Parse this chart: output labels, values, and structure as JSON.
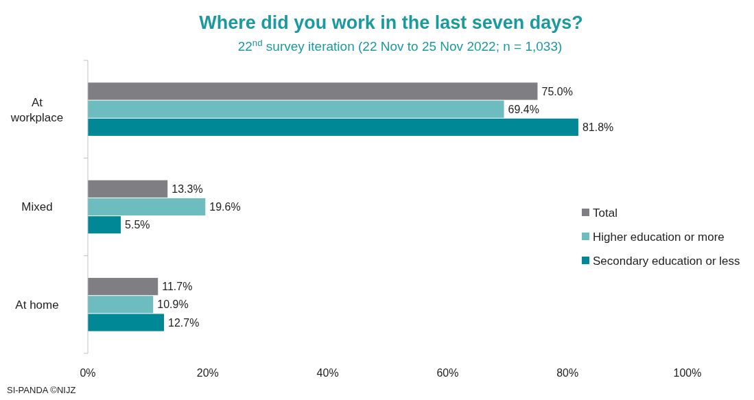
{
  "chart_data": {
    "type": "bar",
    "orientation": "horizontal",
    "title": "Where did you work in the last seven days?",
    "subtitle": "22$^{nd}$ survey iteration (22 Nov to 25 Nov 2022; n = 1,033)",
    "categories": [
      "At\nworkplace",
      "Mixed",
      "At home"
    ],
    "series": [
      {
        "name": "Total",
        "color": "#7f7f83",
        "values": [
          75.0,
          13.3,
          11.7
        ],
        "value_labels": [
          "75.0%",
          "13.3%",
          "11.7%"
        ]
      },
      {
        "name": "Higher education or more",
        "color": "#6dbcc0",
        "values": [
          69.4,
          19.6,
          10.9
        ],
        "value_labels": [
          "69.4%",
          "19.6%",
          "10.9%"
        ]
      },
      {
        "name": "Secondary education or less",
        "color": "#008896",
        "values": [
          81.8,
          5.5,
          12.7
        ],
        "value_labels": [
          "81.8%",
          "5.5%",
          "12.7%"
        ]
      }
    ],
    "xlim": [
      0,
      100
    ],
    "xticks": [
      {
        "value": 0,
        "label": "0%"
      },
      {
        "value": 20,
        "label": "20%"
      },
      {
        "value": 40,
        "label": "40%"
      },
      {
        "value": 60,
        "label": "60%"
      },
      {
        "value": 80,
        "label": "80%"
      },
      {
        "value": 100,
        "label": "100%"
      }
    ],
    "legend": "right",
    "grid": false,
    "annotations": [
      "SI-PANDA ©NIJZ"
    ]
  }
}
